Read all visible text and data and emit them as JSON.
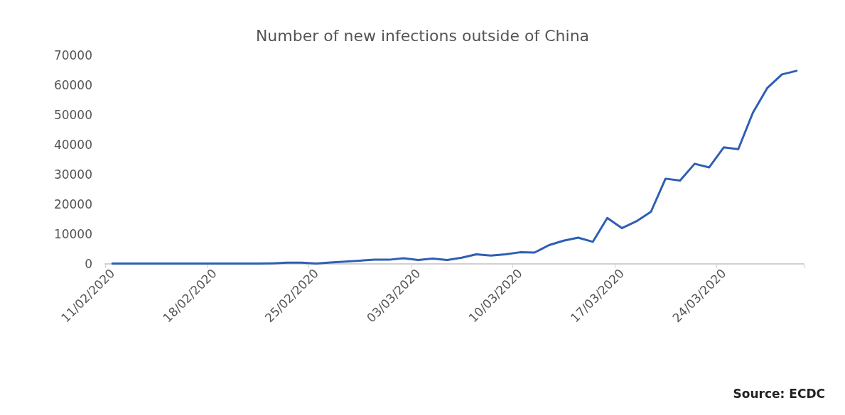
{
  "chart_data": {
    "type": "line",
    "title": "Number of new infections outside of China",
    "categories": [
      "11/02/2020",
      null,
      null,
      null,
      null,
      null,
      null,
      "18/02/2020",
      null,
      null,
      null,
      null,
      null,
      null,
      "25/02/2020",
      null,
      null,
      null,
      null,
      null,
      null,
      "03/03/2020",
      null,
      null,
      null,
      null,
      null,
      null,
      "10/03/2020",
      null,
      null,
      null,
      null,
      null,
      null,
      "17/03/2020",
      null,
      null,
      null,
      null,
      null,
      null,
      "24/03/2020",
      null,
      null,
      null,
      null,
      null
    ],
    "series": [
      {
        "color": "#2e5fb5",
        "values": [
          100,
          100,
          100,
          100,
          100,
          100,
          100,
          100,
          100,
          100,
          100,
          200,
          400,
          400,
          100,
          500,
          800,
          1100,
          1400,
          1400,
          1900,
          1300,
          1800,
          1300,
          2100,
          3200,
          2800,
          3200,
          3900,
          3800,
          6300,
          7800,
          8800,
          7400,
          15400,
          12000,
          14300,
          17500,
          28600,
          28000,
          33600,
          32400,
          39100,
          38500,
          50700,
          59100,
          63600,
          64800
        ]
      }
    ],
    "ylim": [
      0,
      70000
    ],
    "yticks": [
      0,
      10000,
      20000,
      30000,
      40000,
      50000,
      60000,
      70000
    ],
    "grid": false,
    "marker": "none",
    "line_style": "solid",
    "annotations": [
      "Source: ECDC"
    ]
  }
}
